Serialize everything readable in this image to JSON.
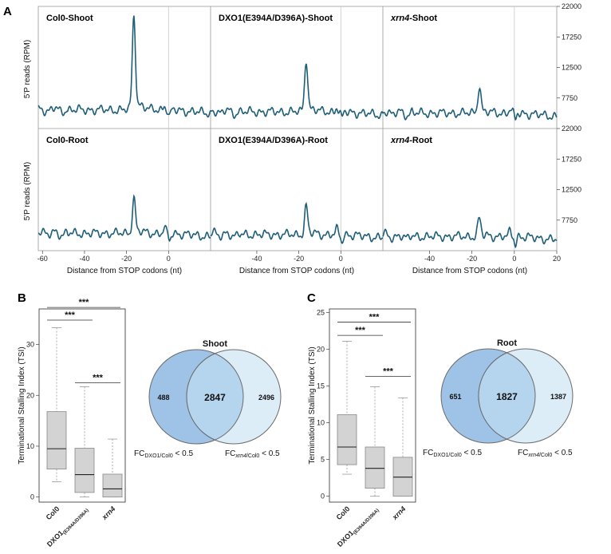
{
  "panel_labels": {
    "a": "A",
    "b": "B",
    "c": "C"
  },
  "colors": {
    "trace": "#1f5e78",
    "box_fill": "#d3d3d3",
    "venn_left": "#9ec3e6",
    "venn_overlap": "#b5d4ee",
    "venn_right": "#dcedf8",
    "venn_stroke": "#6b6b6b"
  },
  "chart_data": [
    {
      "type": "line",
      "id": "metagene",
      "xlabel": "Distance from STOP codons (nt)",
      "ylabel": "5'P reads (RPM)",
      "xlim": [
        -62,
        20
      ],
      "x_ticks": [
        -60,
        -40,
        -20,
        0,
        20
      ],
      "x_tick_labels_left_panel": [
        "-60",
        "-40",
        "-20",
        "0"
      ],
      "x_tick_labels_other_panels": [
        "-40",
        "-20",
        "0"
      ],
      "x_tick_labels_last_panel": [
        "-40",
        "-20",
        "0",
        "20"
      ],
      "ylim": [
        3000,
        22000
      ],
      "y_ticks": [
        7750,
        12500,
        17250,
        22000
      ],
      "y_tick_labels": [
        "7750",
        "12500",
        "17250",
        "22000"
      ],
      "vline_x": 0,
      "panels": [
        {
          "title_plain": "Col0-Shoot",
          "title_italic": "",
          "title_suffix": "",
          "row": 0,
          "col": 0,
          "peak": 20200,
          "base": 5900
        },
        {
          "title_plain": "DXO1(E394A/D396A)-Shoot",
          "title_italic": "",
          "title_suffix": "",
          "row": 0,
          "col": 1,
          "peak": 13600,
          "base": 5600
        },
        {
          "title_plain": "",
          "title_italic": "xrn4",
          "title_suffix": "-Shoot",
          "row": 0,
          "col": 2,
          "peak": 9500,
          "base": 5400
        },
        {
          "title_plain": "Col0-Root",
          "title_italic": "",
          "title_suffix": "",
          "row": 1,
          "col": 0,
          "peak": 11000,
          "base": 5700
        },
        {
          "title_plain": "DXO1(E394A/D396A)-Root",
          "title_italic": "",
          "title_suffix": "",
          "row": 1,
          "col": 1,
          "peak": 9700,
          "base": 5500
        },
        {
          "title_plain": "",
          "title_italic": "xrn4",
          "title_suffix": "-Root",
          "row": 1,
          "col": 2,
          "peak": 7900,
          "base": 5200
        }
      ]
    },
    {
      "type": "box",
      "id": "tsi-shoot",
      "ylabel": "Terminational Stalling Index (TSI)",
      "ylim": [
        -1,
        37
      ],
      "y_ticks": [
        0,
        10,
        20,
        30
      ],
      "y_tick_labels": [
        "0",
        "10",
        "20",
        "30"
      ],
      "categories": [
        {
          "main": "Col0",
          "sub": "",
          "italic": false
        },
        {
          "main": "DXO1",
          "sub": "(E394A/D396A)",
          "italic": false
        },
        {
          "main": "xrn4",
          "sub": "",
          "italic": true
        }
      ],
      "boxes": [
        {
          "low": 3.0,
          "q1": 5.5,
          "median": 9.5,
          "q3": 16.8,
          "high": 33.3
        },
        {
          "low": 0.0,
          "q1": 0.9,
          "median": 4.4,
          "q3": 9.6,
          "high": 21.7
        },
        {
          "low": 0.0,
          "q1": 0.0,
          "median": 1.6,
          "q3": 4.5,
          "high": 11.4
        }
      ],
      "significance": [
        {
          "from": 0,
          "to": 1,
          "label": "***",
          "y": 34.8
        },
        {
          "from": 0,
          "to": 2,
          "label": "***",
          "y": 37.3
        },
        {
          "from": 1,
          "to": 2,
          "label": "***",
          "y": 22.5
        }
      ]
    },
    {
      "type": "box",
      "id": "tsi-root",
      "ylabel": "Terminational Stalling Index (TSI)",
      "ylim": [
        -0.8,
        25.5
      ],
      "y_ticks": [
        0,
        5,
        10,
        15,
        20,
        25
      ],
      "y_tick_labels": [
        "0",
        "5",
        "10",
        "15",
        "20",
        "25"
      ],
      "categories": [
        {
          "main": "Col0",
          "sub": "",
          "italic": false
        },
        {
          "main": "DXO1",
          "sub": "(E394A/D396A)",
          "italic": false
        },
        {
          "main": "xrn4",
          "sub": "",
          "italic": true
        }
      ],
      "boxes": [
        {
          "low": 3.0,
          "q1": 4.3,
          "median": 6.7,
          "q3": 11.1,
          "high": 21.1
        },
        {
          "low": 0.0,
          "q1": 1.1,
          "median": 3.8,
          "q3": 6.7,
          "high": 14.9
        },
        {
          "low": 0.0,
          "q1": 0.0,
          "median": 2.6,
          "q3": 5.3,
          "high": 13.4
        }
      ],
      "significance": [
        {
          "from": 0,
          "to": 1,
          "label": "***",
          "y": 21.9
        },
        {
          "from": 0,
          "to": 2,
          "label": "***",
          "y": 23.7
        },
        {
          "from": 1,
          "to": 2,
          "label": "***",
          "y": 16.3
        }
      ]
    },
    {
      "type": "venn",
      "id": "venn-shoot",
      "title": "Shoot",
      "left_only": "488",
      "overlap": "2847",
      "right_only": "2496",
      "left_label_main": "FC",
      "left_label_sub": "DXO1/Col0",
      "left_label_tail": " < 0.5",
      "right_label_main": "FC",
      "right_label_sub_italic": "xrn4",
      "right_label_sub": "/Col0",
      "right_label_tail": " < 0.5"
    },
    {
      "type": "venn",
      "id": "venn-root",
      "title": "Root",
      "left_only": "651",
      "overlap": "1827",
      "right_only": "1387",
      "left_label_main": "FC",
      "left_label_sub": "DXO1/Col0",
      "left_label_tail": " < 0.5",
      "right_label_main": "FC",
      "right_label_sub_italic": "xrn4",
      "right_label_sub": "/Col0",
      "right_label_tail": " < 0.5"
    }
  ]
}
